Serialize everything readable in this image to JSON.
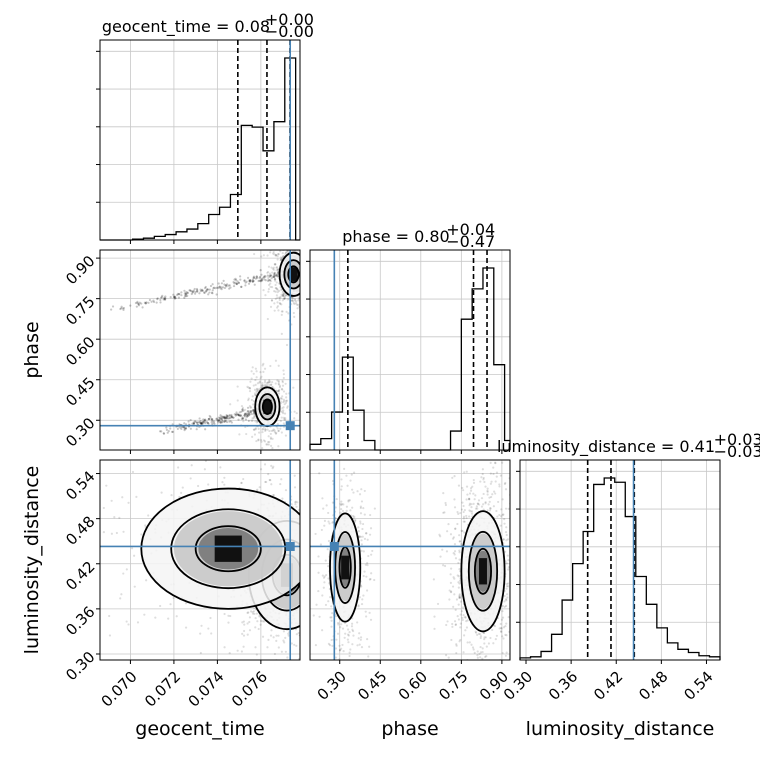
{
  "chart_data": {
    "type": "corner",
    "parameters": [
      {
        "key": "geocent_time",
        "label": "geocent_time",
        "title": "geocent_time = 0.08",
        "err_plus": "+0.00",
        "err_minus": "−0.00",
        "range": [
          0.0686,
          0.0778
        ],
        "ticks": [
          "0.070",
          "0.072",
          "0.074",
          "0.076"
        ],
        "tick_values": [
          0.07,
          0.072,
          0.074,
          0.076
        ],
        "quantiles": [
          0.07494,
          0.07628,
          0.07734
        ],
        "truth": 0.07735,
        "hist_edges": [
          0.0686,
          0.0691,
          0.0696,
          0.0701,
          0.0706,
          0.0711,
          0.0716,
          0.0721,
          0.0726,
          0.0731,
          0.0736,
          0.0741,
          0.0746,
          0.0751,
          0.0756,
          0.0761,
          0.0766,
          0.0771,
          0.0776,
          0.0778
        ],
        "hist_counts": [
          0,
          0,
          0,
          0.005,
          0.01,
          0.02,
          0.03,
          0.045,
          0.06,
          0.09,
          0.14,
          0.18,
          0.25,
          0.63,
          0.62,
          0.49,
          0.65,
          1.0,
          0
        ]
      },
      {
        "key": "phase",
        "label": "phase",
        "title": "phase = 0.80",
        "err_plus": "+0.04",
        "err_minus": "−0.47",
        "range": [
          0.19,
          0.93
        ],
        "ticks": [
          "0.30",
          "0.45",
          "0.60",
          "0.75",
          "0.90"
        ],
        "tick_values": [
          0.3,
          0.45,
          0.6,
          0.75,
          0.9
        ],
        "quantiles": [
          0.33,
          0.795,
          0.845
        ],
        "truth": 0.28,
        "hist_edges": [
          0.19,
          0.23,
          0.27,
          0.31,
          0.35,
          0.39,
          0.43,
          0.47,
          0.51,
          0.55,
          0.59,
          0.63,
          0.67,
          0.71,
          0.75,
          0.79,
          0.83,
          0.87,
          0.91,
          0.93
        ],
        "hist_counts": [
          0.03,
          0.06,
          0.2,
          0.49,
          0.21,
          0.05,
          0,
          0,
          0,
          0,
          0,
          0,
          0,
          0.1,
          0.69,
          0.85,
          0.96,
          0.45,
          0.05
        ]
      },
      {
        "key": "luminosity_distance",
        "label": "luminosity_distance",
        "title": "luminosity_distance = 0.41",
        "err_plus": "+0.03",
        "err_minus": "−0.03",
        "range": [
          0.292,
          0.558
        ],
        "ticks": [
          "0.30",
          "0.36",
          "0.42",
          "0.48",
          "0.54"
        ],
        "tick_values": [
          0.3,
          0.36,
          0.42,
          0.48,
          0.54
        ],
        "quantiles": [
          0.382,
          0.413,
          0.444
        ],
        "truth": 0.443,
        "hist_edges": [
          0.292,
          0.306,
          0.32,
          0.334,
          0.348,
          0.362,
          0.376,
          0.39,
          0.404,
          0.418,
          0.432,
          0.446,
          0.46,
          0.474,
          0.488,
          0.502,
          0.516,
          0.53,
          0.544,
          0.558
        ],
        "hist_counts": [
          0.01,
          0.015,
          0.04,
          0.12,
          0.28,
          0.45,
          0.6,
          0.82,
          0.85,
          0.83,
          0.67,
          0.39,
          0.26,
          0.15,
          0.08,
          0.05,
          0.035,
          0.02,
          0.015
        ]
      }
    ],
    "truth_color": "#4682b4",
    "hist_color": "#000000",
    "grid": true,
    "levels": "filled contours with scatter points of posterior samples",
    "pairs": [
      {
        "x": "geocent_time",
        "y": "phase",
        "blobs": [
          {
            "center": [
              0.0775,
              0.84
            ],
            "radii": [
              0.0004,
              0.05
            ],
            "weight": 1.0
          },
          {
            "center": [
              0.0763,
              0.35
            ],
            "radii": [
              0.00035,
              0.045
            ],
            "weight": 0.6
          }
        ],
        "tails": [
          {
            "from": [
              0.0686,
              0.7
            ],
            "to": [
              0.0776,
              0.85
            ]
          },
          {
            "from": [
              0.0712,
              0.26
            ],
            "to": [
              0.0765,
              0.34
            ]
          }
        ]
      },
      {
        "x": "geocent_time",
        "y": "luminosity_distance",
        "blobs": [
          {
            "center": [
              0.0772,
              0.405
            ],
            "radii": [
              0.0011,
              0.045
            ],
            "weight": 1.0
          },
          {
            "center": [
              0.0745,
              0.44
            ],
            "radii": [
              0.0025,
              0.05
            ],
            "weight": 0.35
          }
        ],
        "tails": []
      },
      {
        "x": "phase",
        "y": "luminosity_distance",
        "blobs": [
          {
            "center": [
              0.83,
              0.41
            ],
            "radii": [
              0.05,
              0.05
            ],
            "weight": 1.0
          },
          {
            "center": [
              0.32,
              0.415
            ],
            "radii": [
              0.035,
              0.045
            ],
            "weight": 0.55
          }
        ],
        "tails": []
      }
    ]
  }
}
